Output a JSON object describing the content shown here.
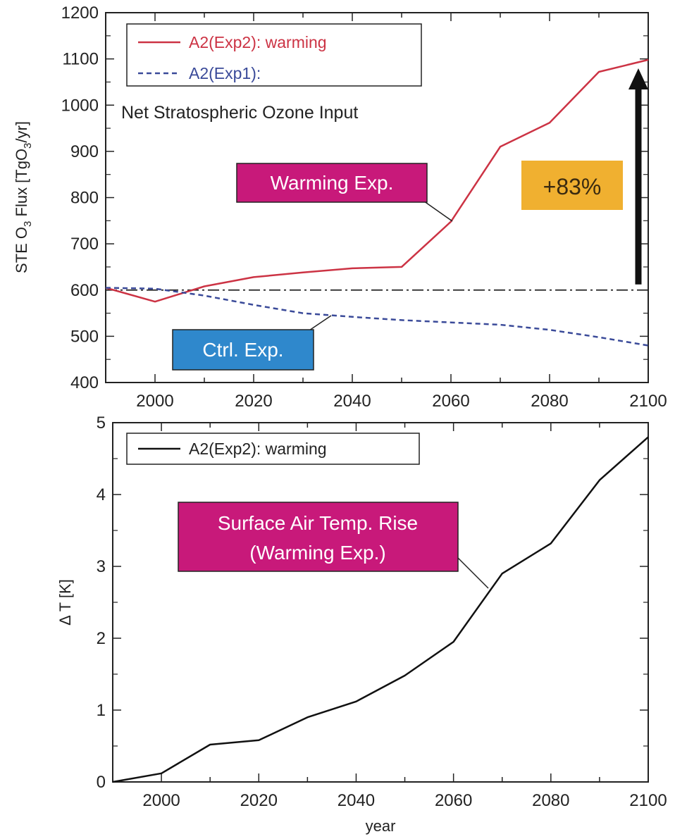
{
  "chart_data": [
    {
      "type": "line",
      "xlim": [
        1990,
        2100
      ],
      "ylim": [
        400,
        1200
      ],
      "xticks": [
        "2000",
        "2020",
        "2040",
        "2060",
        "2080",
        "2100"
      ],
      "yticks": [
        "400",
        "500",
        "600",
        "700",
        "800",
        "900",
        "1000",
        "1100",
        "1200"
      ],
      "ylabel_main": "STE O",
      "ylabel_sub": "3",
      "ylabel_rest": " Flux [TgO",
      "ylabel_sub2": "3",
      "ylabel_end": "/yr]",
      "grid": false,
      "legend_position": "top-left",
      "series": [
        {
          "name": "A2(Exp2): warming",
          "color": "#cc3344",
          "style": "solid",
          "x": [
            1990,
            2000,
            2010,
            2020,
            2030,
            2040,
            2050,
            2060,
            2070,
            2080,
            2090,
            2100
          ],
          "y": [
            605,
            575,
            608,
            628,
            638,
            647,
            650,
            748,
            910,
            962,
            1072,
            1098
          ]
        },
        {
          "name": "A2(Exp1):",
          "color": "#3a4a99",
          "style": "dashed",
          "x": [
            1990,
            2000,
            2010,
            2020,
            2030,
            2040,
            2050,
            2060,
            2070,
            2080,
            2090,
            2100
          ],
          "y": [
            605,
            603,
            588,
            568,
            550,
            542,
            535,
            530,
            525,
            514,
            498,
            480
          ]
        }
      ],
      "reference_line": {
        "y": 600,
        "style": "dash-dot",
        "color": "#222222"
      },
      "annotations": {
        "title_text": "Net Stratospheric Ozone Input",
        "warming_box": "Warming Exp.",
        "warming_box_color": "#c8197a",
        "ctrl_box": "Ctrl. Exp.",
        "ctrl_box_color": "#2f88cc",
        "percent_box": "+83%",
        "percent_box_color": "#f0b030",
        "arrow": {
          "x": 2098,
          "y_from": 600,
          "y_to": 1098
        }
      }
    },
    {
      "type": "line",
      "xlim": [
        1990,
        2100
      ],
      "ylim": [
        0,
        5
      ],
      "xticks": [
        "2000",
        "2020",
        "2040",
        "2060",
        "2080",
        "2100"
      ],
      "yticks": [
        "0",
        "1",
        "2",
        "3",
        "4",
        "5"
      ],
      "xlabel": "year",
      "ylabel": "Δ T [K]",
      "grid": false,
      "legend_position": "top-left",
      "series": [
        {
          "name": "A2(Exp2): warming",
          "color": "#111111",
          "style": "solid",
          "x": [
            1990,
            2000,
            2010,
            2020,
            2030,
            2040,
            2050,
            2060,
            2070,
            2080,
            2090,
            2100
          ],
          "y": [
            0.0,
            0.12,
            0.52,
            0.58,
            0.9,
            1.12,
            1.48,
            1.95,
            2.9,
            3.32,
            4.2,
            4.8
          ]
        }
      ],
      "annotations": {
        "box_line1": "Surface Air Temp. Rise",
        "box_line2": "(Warming Exp.)",
        "box_color": "#c8197a"
      }
    }
  ]
}
